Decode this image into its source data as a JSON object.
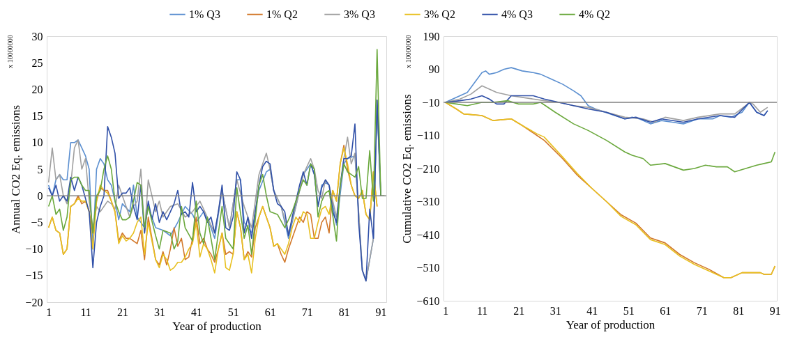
{
  "chart_data": [
    {
      "type": "line",
      "xlabel": "Year of production",
      "ylabel": "Annual CO2 Eq. emissions",
      "annotations": [
        "x 10000000"
      ],
      "xlim": [
        0.5,
        92.5
      ],
      "xticks": [
        1,
        11,
        21,
        31,
        41,
        51,
        61,
        71,
        81,
        91
      ],
      "ylim": [
        -20,
        30
      ],
      "yticks": [
        -20,
        -15,
        -10,
        -5,
        0,
        5,
        10,
        15,
        20,
        25,
        30
      ],
      "legend": "top",
      "grid": false,
      "marker": "none",
      "line_style": "solid",
      "ref_lines": [
        {
          "axis": "y",
          "value": 0,
          "color": "#808080"
        }
      ],
      "series": [
        {
          "name": "1% Q3",
          "color": "#5b8fd0",
          "x": [
            1,
            2,
            3,
            4,
            5,
            6,
            7,
            8,
            9,
            10,
            11,
            12,
            13,
            14,
            15,
            16,
            17,
            18,
            19,
            20,
            21,
            23,
            24,
            25,
            27,
            28,
            30,
            32,
            34,
            36,
            38,
            40,
            41,
            43,
            45,
            46,
            48,
            50,
            52,
            53,
            54,
            56,
            58,
            60,
            61,
            62,
            64,
            66,
            68,
            70,
            72,
            73,
            74,
            75,
            76,
            77,
            79,
            81,
            82,
            84,
            86,
            87,
            89,
            90,
            91
          ],
          "values": [
            2,
            0,
            3,
            4,
            3,
            3,
            10,
            10,
            10.5,
            9,
            7.5,
            5,
            -10,
            5,
            7,
            6,
            3,
            2,
            -1,
            -4.5,
            -1.5,
            -3,
            2,
            -4,
            -6,
            -2,
            -6,
            -6.5,
            -7.5,
            -5,
            -2,
            -3.5,
            -5,
            -3,
            -6,
            -8,
            1,
            -6,
            3,
            3,
            -5,
            -7,
            1,
            4.5,
            5,
            1,
            -2,
            -8,
            -2,
            4,
            6,
            4,
            -2,
            2,
            2.5,
            2,
            -5.5,
            6,
            7,
            7.5,
            -14,
            -16,
            -8,
            17,
            0
          ]
        },
        {
          "name": "1% Q2",
          "color": "#d2782a",
          "x": [
            1,
            2,
            3,
            4,
            5,
            6,
            7,
            8,
            9,
            10,
            11,
            12,
            13,
            14,
            15,
            16,
            17,
            18,
            19,
            20,
            21,
            22,
            23,
            24,
            25,
            26,
            27,
            28,
            30,
            31,
            32,
            33,
            34,
            35,
            36,
            37,
            38,
            39,
            40,
            41,
            42,
            43,
            44,
            45,
            46,
            47,
            48,
            49,
            50,
            51,
            52,
            53,
            54,
            55,
            56,
            57,
            58,
            59,
            61,
            62,
            63,
            64,
            65,
            66,
            67,
            68,
            69,
            70,
            71,
            72,
            73,
            74,
            75,
            76,
            77,
            78,
            79,
            80,
            81,
            82,
            83,
            84,
            85,
            86,
            87,
            88,
            89,
            90
          ],
          "values": [
            -6,
            -4,
            -6.5,
            -7,
            -11,
            -10,
            -2,
            -1.5,
            0,
            -1.5,
            -1,
            -3,
            -7,
            -1,
            1.5,
            1,
            1,
            -1,
            -3,
            -8.5,
            -7,
            -8,
            -8,
            -8.5,
            -9,
            -6.5,
            -12,
            -4,
            -12,
            -13,
            -10.5,
            -13,
            -10,
            -6,
            -9.5,
            -8,
            -12,
            -11.5,
            -8,
            -4,
            -9,
            -8,
            -10,
            -11,
            -12.5,
            -10,
            -7,
            -11,
            -10.5,
            -11,
            -3,
            -6,
            -12,
            -10.5,
            -11.5,
            -6,
            -4,
            -2,
            -6,
            -9.5,
            -9,
            -11,
            -12.5,
            -10,
            -8,
            -6,
            -4,
            -5,
            -3,
            -3.5,
            -8,
            -8,
            -5,
            -4,
            -7,
            1,
            -1,
            6,
            9.5,
            5,
            2,
            0,
            -0.5,
            1,
            -3.5,
            -4.5,
            4.5,
            -2
          ]
        },
        {
          "name": "3%  Q3",
          "color": "#a0a0a0",
          "x": [
            1,
            2,
            3,
            4,
            5,
            6,
            7,
            8,
            9,
            10,
            11,
            12,
            13,
            14,
            15,
            16,
            17,
            18,
            19,
            20,
            21,
            23,
            24,
            25,
            26,
            27,
            28,
            30,
            31,
            32,
            34,
            36,
            38,
            40,
            42,
            44,
            46,
            48,
            50,
            52,
            54,
            56,
            58,
            60,
            61,
            62,
            64,
            66,
            68,
            70,
            72,
            73,
            74,
            75,
            76,
            77,
            79,
            81,
            82,
            83,
            84,
            86,
            87,
            89,
            90,
            91
          ],
          "values": [
            2.5,
            9,
            3,
            4,
            0,
            -1.5,
            2,
            9,
            10.5,
            5,
            7,
            -1,
            -6,
            -2,
            -3,
            -2,
            -1,
            -1.5,
            -2.5,
            2,
            0,
            -4,
            -2,
            -1,
            5,
            -7,
            3,
            -3,
            -1,
            -4,
            -2,
            -1.5,
            -4,
            -3,
            -1,
            -4,
            -7,
            1,
            -6,
            3,
            -2,
            -6,
            4,
            8,
            5,
            1,
            -2,
            -7,
            -2,
            4,
            7,
            5,
            1,
            -0.5,
            3,
            2,
            -4,
            7,
            11,
            6,
            8,
            -14,
            -16,
            -8,
            18,
            0
          ]
        },
        {
          "name": "3% Q2",
          "color": "#e8c020",
          "x": [
            1,
            2,
            3,
            4,
            5,
            6,
            7,
            8,
            9,
            10,
            11,
            12,
            13,
            14,
            15,
            16,
            17,
            18,
            19,
            20,
            21,
            22,
            23,
            24,
            25,
            26,
            27,
            28,
            30,
            31,
            32,
            33,
            34,
            35,
            36,
            37,
            38,
            39,
            40,
            41,
            42,
            43,
            44,
            45,
            46,
            47,
            48,
            49,
            50,
            51,
            52,
            53,
            54,
            55,
            56,
            57,
            58,
            59,
            61,
            62,
            63,
            64,
            65,
            66,
            67,
            68,
            69,
            70,
            71,
            72,
            73,
            74,
            75,
            76,
            77,
            78,
            79,
            80,
            81,
            82,
            83,
            84,
            85,
            86,
            87,
            88,
            89,
            90
          ],
          "values": [
            -6,
            -4,
            -6.5,
            -7,
            -11,
            -10,
            -2,
            -1.5,
            -0.5,
            -1,
            -1,
            -3,
            -10,
            -1,
            2,
            1,
            0.5,
            -1,
            -3,
            -9,
            -7.5,
            -8.5,
            -8,
            -7,
            -5,
            -4,
            -11,
            -5,
            -12,
            -13.5,
            -11,
            -12,
            -14,
            -13.5,
            -12.5,
            -12.5,
            -11.5,
            -10,
            -9,
            -5,
            -11.5,
            -9,
            -10,
            -12,
            -14.5,
            -10,
            -7,
            -13.5,
            -14,
            -11,
            -3,
            -6,
            -12,
            -11,
            -14.5,
            -8,
            -4,
            -2,
            -6,
            -9.5,
            -9,
            -10,
            -11,
            -9,
            -6,
            -4,
            -5,
            -3,
            -3.5,
            -8,
            -8,
            -5,
            -2.5,
            -2,
            -3.5,
            1,
            -1,
            6,
            9,
            6,
            2,
            0,
            -0.5,
            1,
            -3.5,
            -4.5,
            4.5,
            -2
          ]
        },
        {
          "name": "4% Q3",
          "color": "#3050a8",
          "x": [
            1,
            2,
            3,
            4,
            5,
            6,
            7,
            8,
            9,
            10,
            12,
            13,
            14,
            15,
            16,
            17,
            18,
            19,
            20,
            21,
            22,
            23,
            24,
            25,
            26,
            27,
            28,
            29,
            30,
            31,
            32,
            33,
            34,
            35,
            36,
            37,
            38,
            39,
            40,
            41,
            42,
            43,
            44,
            45,
            46,
            47,
            48,
            49,
            50,
            51,
            52,
            53,
            54,
            55,
            56,
            57,
            58,
            59,
            60,
            61,
            62,
            63,
            64,
            65,
            66,
            67,
            68,
            69,
            70,
            71,
            72,
            73,
            74,
            75,
            76,
            77,
            78,
            79,
            80,
            81,
            82,
            83,
            84,
            85,
            86,
            87,
            88,
            89,
            90,
            91
          ],
          "values": [
            1.5,
            0,
            2,
            -1,
            0,
            -1,
            3.5,
            1,
            3.5,
            2,
            -3,
            -13.5,
            -5,
            -2,
            0,
            13,
            11,
            8,
            -0.5,
            0.5,
            0.5,
            1.5,
            -2,
            -4.5,
            2,
            -7,
            -1,
            -4.5,
            -1.5,
            -5,
            -3,
            -4.5,
            -3,
            -1.5,
            1,
            -3.5,
            -3,
            -4,
            2.5,
            -3,
            -2,
            -3,
            -5,
            -4,
            -7,
            -3,
            2,
            -6,
            -6.5,
            -4,
            4.5,
            3,
            -7,
            -4,
            -8,
            -3,
            2,
            5.5,
            6.5,
            6,
            1,
            -1.5,
            -2,
            -3,
            -7.5,
            -4,
            -1,
            2,
            4.5,
            2,
            6,
            4,
            -2,
            1.5,
            3,
            2,
            -3,
            -5,
            2,
            7,
            7,
            7.5,
            13.5,
            -5,
            -14,
            -16,
            -2.5,
            -8,
            18,
            0
          ]
        },
        {
          "name": "4% Q2",
          "color": "#6aa83c",
          "x": [
            1,
            2,
            3,
            4,
            5,
            6,
            7,
            8,
            9,
            10,
            11,
            12,
            13,
            14,
            15,
            16,
            17,
            18,
            19,
            20,
            21,
            22,
            23,
            24,
            25,
            26,
            27,
            28,
            30,
            31,
            32,
            34,
            35,
            36,
            37,
            38,
            40,
            41,
            42,
            43,
            44,
            46,
            48,
            49,
            50,
            51,
            52,
            54,
            55,
            56,
            58,
            59,
            60,
            61,
            63,
            65,
            67,
            69,
            70,
            71,
            72,
            73,
            74,
            75,
            76,
            77,
            79,
            80,
            81,
            82,
            84,
            85,
            86,
            87,
            88,
            89,
            90,
            91,
            92
          ],
          "values": [
            -2,
            0,
            -3.5,
            -2.5,
            -6.5,
            -4,
            3,
            3.5,
            3.5,
            2,
            1,
            1,
            -7,
            0,
            1,
            5,
            7.5,
            5,
            -1,
            -3,
            -4.5,
            -4.5,
            -4,
            -1,
            2.5,
            2,
            -6,
            -2,
            -7.5,
            -10,
            -6.5,
            -7,
            -10,
            -8.5,
            -2,
            -6,
            -8.5,
            -1,
            -7,
            -9,
            -4,
            -12,
            -2,
            -8,
            -9,
            -10,
            1.5,
            -8,
            -5.5,
            -11,
            2,
            4,
            0,
            -3,
            -3.5,
            -6,
            -3,
            1,
            3,
            2,
            6,
            5,
            -4,
            -1,
            0.5,
            1,
            -8.5,
            2,
            6,
            4.5,
            3.5,
            5.5,
            -0.5,
            -0.5,
            8.5,
            -1,
            27.5,
            0,
            0
          ]
        }
      ]
    },
    {
      "type": "line",
      "xlabel": "Year of production",
      "ylabel": "Cumulative CO2 Eq. emissions",
      "annotations": [
        "x 10000000"
      ],
      "xlim": [
        0.5,
        91.5
      ],
      "xticks": [
        1,
        11,
        21,
        31,
        41,
        51,
        61,
        71,
        81,
        91
      ],
      "ylim": [
        -610,
        190
      ],
      "yticks": [
        -610,
        -510,
        -410,
        -310,
        -210,
        -110,
        -10,
        90,
        190
      ],
      "grid": false,
      "marker": "none",
      "line_style": "solid",
      "ref_lines": [
        {
          "axis": "y",
          "value": -10,
          "color": "#808080"
        }
      ],
      "series": [
        {
          "color": "#5b8fd0",
          "x": [
            1,
            5,
            7,
            9,
            11,
            12,
            13,
            15,
            17,
            19,
            22,
            25,
            27,
            30,
            33,
            36,
            38,
            40,
            42,
            46,
            50,
            52,
            54,
            57,
            60,
            63,
            66,
            70,
            74,
            76,
            79,
            82,
            84,
            86,
            88,
            89
          ],
          "values": [
            -10,
            10,
            20,
            50,
            80,
            85,
            75,
            80,
            90,
            95,
            85,
            80,
            75,
            60,
            45,
            25,
            10,
            -20,
            -30,
            -45,
            -60,
            -55,
            -60,
            -75,
            -65,
            -70,
            -75,
            -60,
            -60,
            -50,
            -55,
            -40,
            -10,
            -40,
            -50,
            -35
          ]
        },
        {
          "color": "#d2782a",
          "x": [
            1,
            4,
            6,
            11,
            14,
            19,
            22,
            26,
            28,
            33,
            37,
            41,
            45,
            49,
            53,
            57,
            61,
            65,
            69,
            73,
            77,
            79,
            82,
            87,
            88,
            90,
            91
          ],
          "values": [
            -10,
            -30,
            -45,
            -50,
            -65,
            -60,
            -80,
            -110,
            -125,
            -180,
            -230,
            -270,
            -310,
            -350,
            -375,
            -420,
            -435,
            -470,
            -495,
            -515,
            -540,
            -540,
            -525,
            -525,
            -530,
            -530,
            -505
          ]
        },
        {
          "color": "#a0a0a0",
          "x": [
            1,
            5,
            8,
            11,
            13,
            15,
            19,
            22,
            25,
            28,
            32,
            36,
            40,
            45,
            50,
            55,
            58,
            61,
            66,
            70,
            76,
            80,
            83,
            84,
            85,
            87,
            89
          ],
          "values": [
            -10,
            0,
            15,
            40,
            30,
            20,
            10,
            5,
            0,
            -5,
            -10,
            -20,
            -25,
            -40,
            -55,
            -60,
            -70,
            -55,
            -65,
            -55,
            -45,
            -45,
            -20,
            -10,
            -15,
            -40,
            -25
          ]
        },
        {
          "color": "#e8c020",
          "x": [
            1,
            4,
            6,
            11,
            14,
            19,
            22,
            26,
            28,
            33,
            37,
            41,
            45,
            49,
            53,
            57,
            61,
            65,
            69,
            73,
            77,
            79,
            82,
            87,
            88,
            90,
            91
          ],
          "values": [
            -10,
            -30,
            -45,
            -50,
            -65,
            -60,
            -80,
            -105,
            -115,
            -175,
            -225,
            -270,
            -310,
            -355,
            -380,
            -425,
            -440,
            -475,
            -500,
            -520,
            -540,
            -540,
            -525,
            -525,
            -530,
            -530,
            -505
          ]
        },
        {
          "color": "#3050a8",
          "x": [
            1,
            5,
            8,
            11,
            13,
            15,
            17,
            19,
            22,
            25,
            28,
            32,
            36,
            40,
            45,
            50,
            53,
            57,
            60,
            66,
            70,
            76,
            80,
            84,
            86,
            88,
            89
          ],
          "values": [
            -10,
            -5,
            0,
            10,
            0,
            -15,
            -15,
            10,
            10,
            10,
            0,
            -10,
            -20,
            -30,
            -40,
            -60,
            -55,
            -70,
            -60,
            -70,
            -60,
            -50,
            -55,
            -10,
            -40,
            -50,
            -35
          ]
        },
        {
          "color": "#6aa83c",
          "x": [
            1,
            4,
            7,
            11,
            14,
            18,
            21,
            25,
            27,
            31,
            36,
            40,
            45,
            50,
            52,
            55,
            57,
            61,
            66,
            69,
            72,
            75,
            78,
            80,
            83,
            86,
            88,
            90,
            91
          ],
          "values": [
            -10,
            -15,
            -20,
            -10,
            -10,
            -5,
            -15,
            -15,
            -10,
            -40,
            -75,
            -95,
            -125,
            -160,
            -170,
            -180,
            -200,
            -195,
            -215,
            -210,
            -200,
            -205,
            -205,
            -220,
            -210,
            -200,
            -195,
            -190,
            -160
          ]
        }
      ]
    }
  ]
}
